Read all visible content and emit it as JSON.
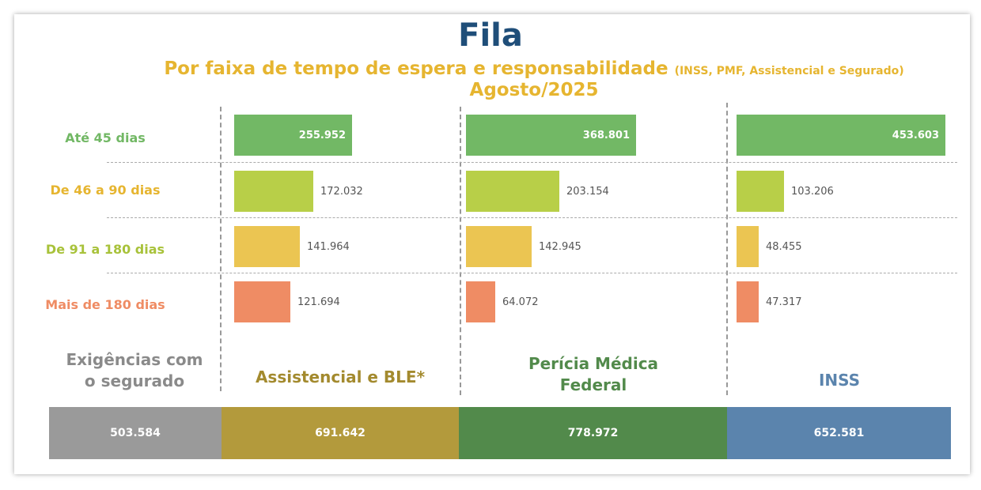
{
  "title": "Fila",
  "subtitle_main": "Por faixa de tempo de espera e responsabilidade",
  "subtitle_small": "(INSS, PMF, Assistencial e Segurado)",
  "subtitle_date": "Agosto/2025",
  "colors": {
    "title": "#1f4e79",
    "subtitle": "#e6b530",
    "ate45": "#72b865",
    "d46_90": "#b8cf48",
    "d91_180": "#ebc552",
    "mais180": "#ef8c64",
    "segurado": "#9a9a9a",
    "assistencial": "#b39a3c",
    "pericia": "#528a4b",
    "inss": "#5b84ad"
  },
  "chart_data": {
    "type": "bar",
    "orientation": "horizontal",
    "categories": [
      "Até 45 dias",
      "De 46 a 90 dias",
      "De 91 a 180 dias",
      "Mais de 180 dias"
    ],
    "series": [
      {
        "name": "Assistencial e BLE*",
        "values": [
          255952,
          172032,
          141964,
          121694
        ],
        "labels": [
          "255.952",
          "172.032",
          "141.964",
          "121.694"
        ],
        "total": "691.642"
      },
      {
        "name": "Perícia Médica Federal",
        "values": [
          368801,
          203154,
          142945,
          64072
        ],
        "labels": [
          "368.801",
          "203.154",
          "142.945",
          "64.072"
        ],
        "total": "778.972"
      },
      {
        "name": "INSS",
        "values": [
          453603,
          103206,
          48455,
          47317
        ],
        "labels": [
          "453.603",
          "103.206",
          "48.455",
          "47.317"
        ],
        "total": "652.581"
      }
    ],
    "segurado": {
      "name": "Exigências com o segurado",
      "total": "503.584"
    }
  },
  "row_labels": [
    "Até 45 dias",
    "De 46 a 90 dias",
    "De 91 a 180 dias",
    "Mais de 180 dias"
  ],
  "column_heads": {
    "segurado_line1": "Exigências com",
    "segurado_line2": "o segurado",
    "assistencial": "Assistencial e BLE*",
    "pericia_line1": "Perícia Médica",
    "pericia_line2": "Federal",
    "inss": "INSS"
  },
  "totals": {
    "segurado": "503.584",
    "assistencial": "691.642",
    "pericia": "778.972",
    "inss": "652.581"
  }
}
